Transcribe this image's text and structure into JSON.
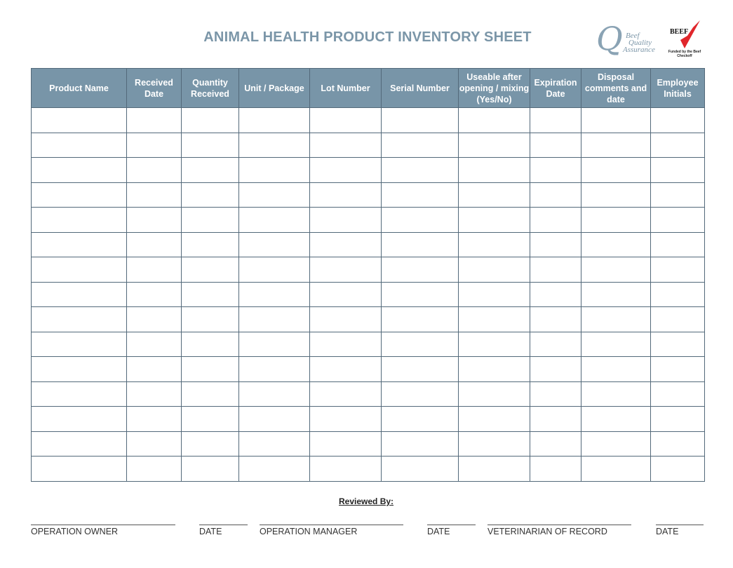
{
  "title": "ANIMAL HEALTH PRODUCT INVENTORY SHEET",
  "logos": {
    "bqa": {
      "letter": "Q",
      "text": [
        "Beef",
        "Quality",
        "Assurance"
      ],
      "color": "#7d97a9"
    },
    "beef": {
      "text": "BEEF",
      "tagline": "Funded by the Beef Checkoff",
      "color": "#e0262b"
    }
  },
  "table": {
    "columns": [
      "Product Name",
      "Received Date",
      "Quantity Received",
      "Unit / Package",
      "Lot Number",
      "Serial Number",
      "Useable after opening / mixing (Yes/No)",
      "Expiration Date",
      "Disposal comments and date",
      "Employee Initials"
    ],
    "row_count": 15,
    "header_color": "#7895a8"
  },
  "footer": {
    "reviewed_by": "Reviewed By:",
    "signatures": [
      "OPERATION OWNER",
      "DATE",
      "OPERATION MANAGER",
      "DATE",
      "VETERINARIAN OF RECORD",
      "DATE"
    ]
  }
}
